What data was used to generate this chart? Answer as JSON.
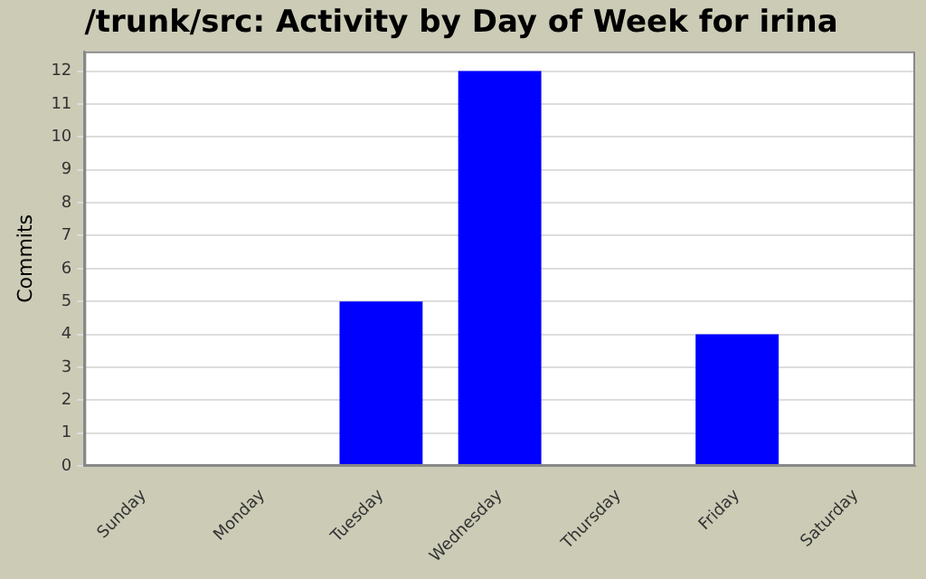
{
  "chart_data": {
    "type": "bar",
    "title": "/trunk/src: Activity by Day of Week for irina",
    "ylabel": "Commits",
    "categories": [
      "Sunday",
      "Monday",
      "Tuesday",
      "Wednesday",
      "Thursday",
      "Friday",
      "Saturday"
    ],
    "values": [
      0,
      0,
      5,
      12,
      0,
      4,
      0
    ],
    "color": "#0000ff",
    "ylim": [
      0,
      12.6
    ],
    "yticks": [
      0,
      1,
      2,
      3,
      4,
      5,
      6,
      7,
      8,
      9,
      10,
      11,
      12
    ],
    "grid": "y"
  }
}
